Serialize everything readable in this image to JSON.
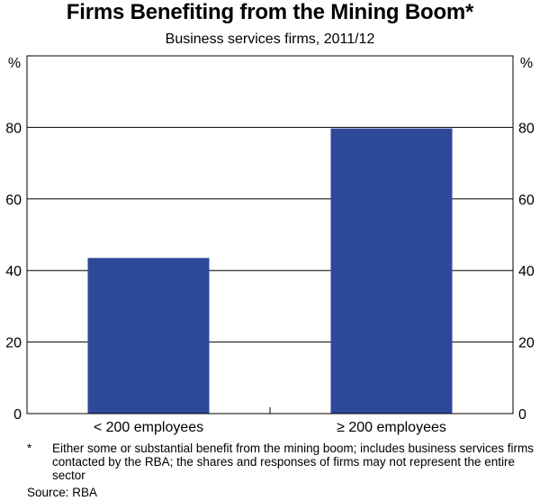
{
  "chart_data": {
    "type": "bar",
    "title": "Firms Benefiting from the Mining Boom*",
    "subtitle": "Business services firms, 2011/12",
    "categories": [
      "< 200 employees",
      "≥ 200 employees"
    ],
    "values": [
      43.5,
      79.7
    ],
    "ylabel": "%",
    "ylabel_right": "%",
    "ylim": [
      0,
      100
    ],
    "yticks": [
      0,
      20,
      40,
      60,
      80
    ],
    "ytick_labels": [
      "0",
      "20",
      "40",
      "60",
      "80"
    ],
    "bar_color": "#2e489a",
    "grid": true,
    "footnote_mark": "*",
    "footnote": "Either some or substantial benefit from the mining boom; includes business services firms contacted by the RBA; the shares and responses of firms may not represent the entire sector",
    "source": "Source: RBA"
  }
}
